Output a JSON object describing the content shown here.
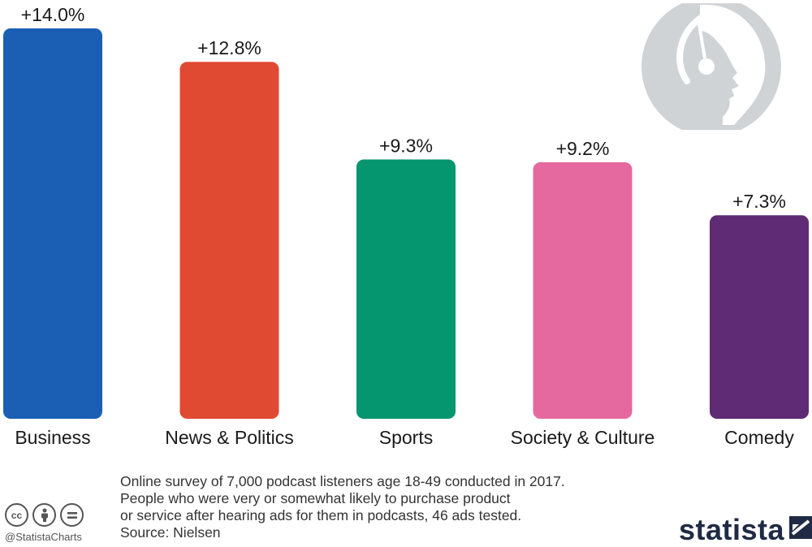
{
  "chart_data": {
    "type": "bar",
    "categories": [
      "Business",
      "News & Politics",
      "Sports",
      "Society & Culture",
      "Comedy"
    ],
    "values": [
      14.0,
      12.8,
      9.3,
      9.2,
      7.3
    ],
    "value_labels": [
      "+14.0%",
      "+12.8%",
      "+9.3%",
      "+9.2%",
      "+7.3%"
    ],
    "colors": [
      "#1a5fb4",
      "#e04a33",
      "#05956f",
      "#e5689f",
      "#5e2b74"
    ],
    "title": "",
    "xlabel": "",
    "ylabel": "",
    "ylim": [
      0,
      14.0
    ],
    "grid": false,
    "legend": "none"
  },
  "footnote": {
    "lines": [
      "Online survey of 7,000 podcast listeners age 18-49 conducted in 2017.",
      "People who were very or somewhat likely to purchase product",
      "or service after hearing ads for them in podcasts, 46 ads tested."
    ],
    "source": "Source: Nielsen"
  },
  "credit": {
    "handle": "@StatistaCharts",
    "cc_icons": [
      "cc-icon",
      "attribution-icon",
      "no-derivatives-icon"
    ]
  },
  "brand": {
    "name": "statista"
  },
  "decor": {
    "icon": "podcast-listener-headset-icon",
    "icon_color": "#d0d3d6"
  }
}
